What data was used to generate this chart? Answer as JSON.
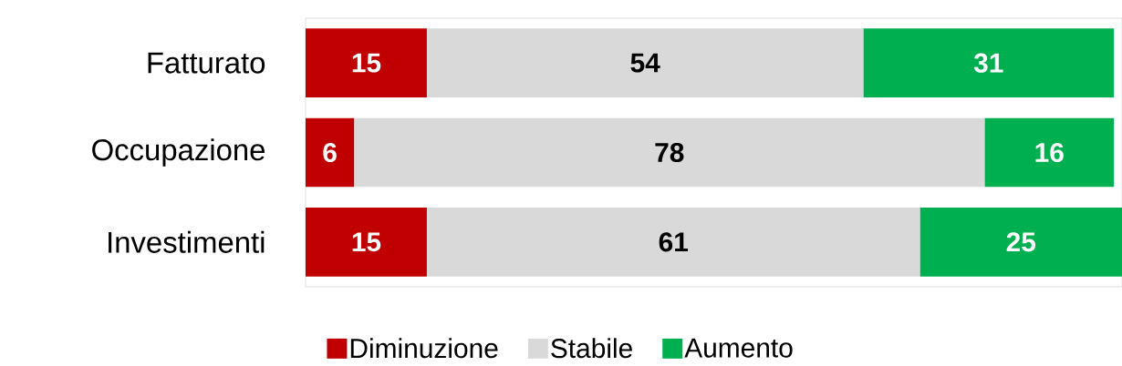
{
  "chart_data": {
    "type": "bar",
    "orientation": "horizontal",
    "stacked": true,
    "data_labels": true,
    "legend": "bottom",
    "categories": [
      "Fatturato",
      "Occupazione",
      "Investimenti"
    ],
    "series": [
      {
        "name": "Diminuzione",
        "color": "#c00000",
        "values": [
          15,
          6,
          15
        ]
      },
      {
        "name": "Stabile",
        "color": "#d9d9d9",
        "values": [
          54,
          78,
          61
        ]
      },
      {
        "name": "Aumento",
        "color": "#00b050",
        "values": [
          31,
          16,
          25
        ]
      }
    ]
  }
}
